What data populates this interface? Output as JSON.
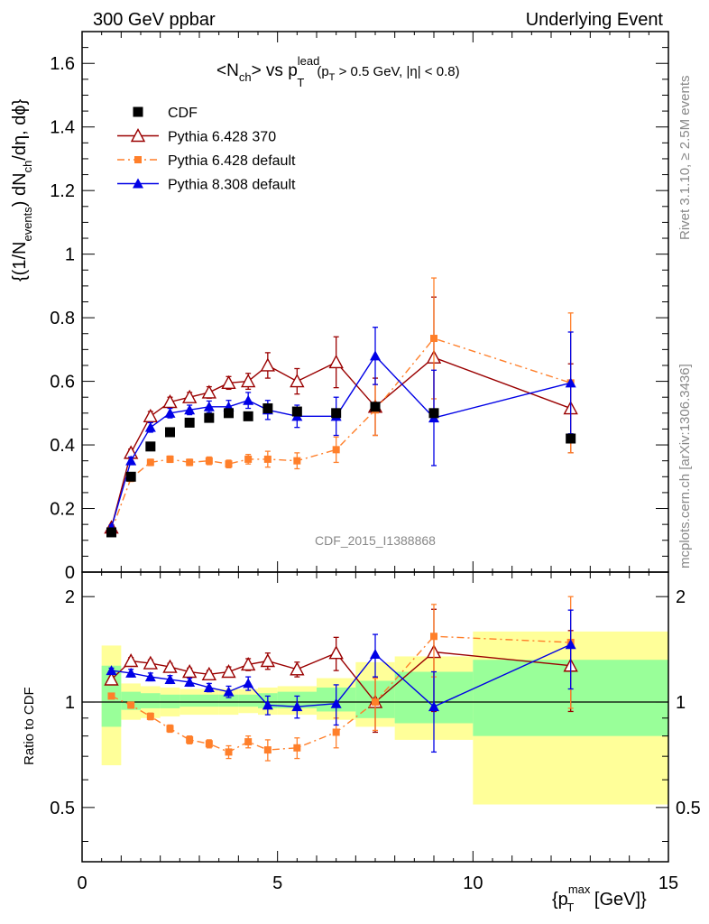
{
  "header": {
    "left": "300 GeV ppbar",
    "right": "Underlying Event",
    "side_rivet": "Rivet 3.1.10, ≥ 2.5M events",
    "side_mcplots": "mcplots.cern.ch [arXiv:1306.3436]",
    "analysis_tag": "CDF_2015_I1388868"
  },
  "chart_data": [
    {
      "type": "scatter",
      "panel": "main",
      "title_parts": {
        "a": "<N",
        "a_sub": "ch",
        "b": "> vs p",
        "b_sup": "lead",
        "b_sub": "T",
        "c": "(p",
        "c_sub": "T",
        "d": " > 0.5 GeV, |",
        "d_eta": "η",
        "d2": "| < 0.8)"
      },
      "ylabel_parts": {
        "a": "{(1/N",
        "a_sub": "events",
        "b": ") dN",
        "b_sub": "ch",
        "c": "/dη, dϕ}"
      },
      "xlim": [
        0,
        15
      ],
      "ylim": [
        0,
        1.7
      ],
      "y_ticks": [
        0,
        0.2,
        0.4,
        0.6,
        0.8,
        1,
        1.2,
        1.4,
        1.6
      ],
      "y_tick_labels": [
        "0",
        "0.2",
        "0.4",
        "0.6",
        "0.8",
        "1",
        "1.2",
        "1.4",
        "1.6"
      ],
      "legend_position": "top-left",
      "series": [
        {
          "name": "CDF",
          "style": "data",
          "color": "#000000",
          "x": [
            0.75,
            1.25,
            1.75,
            2.25,
            2.75,
            3.25,
            3.75,
            4.25,
            4.75,
            5.5,
            6.5,
            7.5,
            9.0,
            12.5
          ],
          "y": [
            0.125,
            0.3,
            0.395,
            0.44,
            0.47,
            0.485,
            0.5,
            0.49,
            0.515,
            0.505,
            0.5,
            0.52,
            0.5,
            0.42
          ],
          "err": [
            0,
            0,
            0,
            0,
            0,
            0,
            0,
            0,
            0,
            0,
            0,
            0,
            0,
            0
          ]
        },
        {
          "name": "Pythia 6.428 370",
          "style": "open-triangle",
          "color": "#9a0000",
          "x": [
            0.75,
            1.25,
            1.75,
            2.25,
            2.75,
            3.25,
            3.75,
            4.25,
            4.75,
            5.5,
            6.5,
            7.5,
            9.0,
            12.5
          ],
          "y": [
            0.14,
            0.375,
            0.49,
            0.535,
            0.55,
            0.565,
            0.595,
            0.6,
            0.65,
            0.6,
            0.66,
            0.52,
            0.675,
            0.515
          ],
          "err": [
            0.008,
            0.012,
            0.015,
            0.015,
            0.015,
            0.018,
            0.02,
            0.025,
            0.04,
            0.04,
            0.08,
            0.09,
            0.19,
            0.14
          ]
        },
        {
          "name": "Pythia 6.428 default",
          "style": "square-dashdot",
          "color": "#ff7f2a",
          "x": [
            0.75,
            1.25,
            1.75,
            2.25,
            2.75,
            3.25,
            3.75,
            4.25,
            4.75,
            5.5,
            6.5,
            7.5,
            9.0,
            12.5
          ],
          "y": [
            0.13,
            0.295,
            0.345,
            0.355,
            0.345,
            0.35,
            0.34,
            0.355,
            0.355,
            0.35,
            0.385,
            0.51,
            0.735,
            0.595
          ],
          "err": [
            0.006,
            0.01,
            0.01,
            0.01,
            0.01,
            0.012,
            0.012,
            0.015,
            0.025,
            0.025,
            0.04,
            0.08,
            0.19,
            0.22
          ]
        },
        {
          "name": "Pythia 8.308 default",
          "style": "triangle",
          "color": "#0000e6",
          "x": [
            0.75,
            1.25,
            1.75,
            2.25,
            2.75,
            3.25,
            3.75,
            4.25,
            4.75,
            5.5,
            6.5,
            7.5,
            9.0,
            12.5
          ],
          "y": [
            0.14,
            0.35,
            0.455,
            0.5,
            0.51,
            0.52,
            0.52,
            0.54,
            0.51,
            0.49,
            0.49,
            0.68,
            0.485,
            0.595
          ],
          "err": [
            0.008,
            0.012,
            0.015,
            0.015,
            0.015,
            0.018,
            0.02,
            0.025,
            0.03,
            0.035,
            0.06,
            0.09,
            0.15,
            0.16
          ]
        }
      ]
    },
    {
      "type": "scatter",
      "panel": "ratio",
      "ylabel": "Ratio to CDF",
      "xlabel_parts": {
        "a": "{p",
        "a_sup": "max",
        "a_sub": "T",
        "b": " [GeV]}"
      },
      "xlim": [
        0,
        15
      ],
      "ylim": [
        0.35,
        2.35
      ],
      "log_y": true,
      "x_ticks": [
        0,
        5,
        10,
        15
      ],
      "x_tick_labels": [
        "0",
        "5",
        "10",
        "15"
      ],
      "y_ticks": [
        0.5,
        1,
        2
      ],
      "y_tick_labels": [
        "0.5",
        "1",
        "2"
      ],
      "bands": {
        "bins": [
          [
            0.5,
            1.0
          ],
          [
            1.0,
            1.5
          ],
          [
            1.5,
            2.0
          ],
          [
            2.0,
            2.5
          ],
          [
            2.5,
            3.0
          ],
          [
            3.0,
            3.5
          ],
          [
            3.5,
            4.0
          ],
          [
            4.0,
            4.5
          ],
          [
            4.5,
            5.0
          ],
          [
            5.0,
            6.0
          ],
          [
            6.0,
            7.0
          ],
          [
            7.0,
            8.0
          ],
          [
            8.0,
            10.0
          ],
          [
            10.0,
            15.0
          ]
        ],
        "total_lo": [
          0.66,
          0.89,
          0.9,
          0.91,
          0.92,
          0.92,
          0.92,
          0.93,
          0.92,
          0.92,
          0.89,
          0.85,
          0.78,
          0.51
        ],
        "total_hi": [
          1.45,
          1.13,
          1.11,
          1.1,
          1.09,
          1.09,
          1.09,
          1.09,
          1.1,
          1.11,
          1.17,
          1.3,
          1.35,
          1.59
        ],
        "stat_lo": [
          0.85,
          0.95,
          0.96,
          0.96,
          0.97,
          0.97,
          0.97,
          0.97,
          0.96,
          0.96,
          0.94,
          0.9,
          0.87,
          0.8
        ],
        "stat_hi": [
          1.27,
          1.07,
          1.06,
          1.05,
          1.05,
          1.05,
          1.05,
          1.05,
          1.06,
          1.07,
          1.1,
          1.15,
          1.22,
          1.32
        ]
      },
      "series": [
        {
          "name": "Pythia 6.428 370",
          "style": "open-triangle",
          "color": "#9a0000",
          "x": [
            0.75,
            1.25,
            1.75,
            2.25,
            2.75,
            3.25,
            3.75,
            4.25,
            4.75,
            5.5,
            6.5,
            7.5,
            9.0,
            12.5
          ],
          "y": [
            1.16,
            1.31,
            1.29,
            1.26,
            1.22,
            1.2,
            1.22,
            1.28,
            1.31,
            1.24,
            1.38,
            1.0,
            1.39,
            1.27
          ],
          "err": [
            0.02,
            0.03,
            0.03,
            0.03,
            0.03,
            0.03,
            0.04,
            0.05,
            0.07,
            0.06,
            0.15,
            0.18,
            0.45,
            0.33
          ]
        },
        {
          "name": "Pythia 6.428 default",
          "style": "square-dashdot",
          "color": "#ff7f2a",
          "x": [
            0.75,
            1.25,
            1.75,
            2.25,
            2.75,
            3.25,
            3.75,
            4.25,
            4.75,
            5.5,
            6.5,
            7.5,
            9.0,
            12.5
          ],
          "y": [
            1.04,
            0.98,
            0.91,
            0.84,
            0.78,
            0.76,
            0.72,
            0.77,
            0.73,
            0.74,
            0.82,
            1.0,
            1.54,
            1.48
          ],
          "err": [
            0.01,
            0.02,
            0.02,
            0.02,
            0.02,
            0.02,
            0.03,
            0.03,
            0.05,
            0.05,
            0.08,
            0.17,
            0.36,
            0.52
          ]
        },
        {
          "name": "Pythia 8.308 default",
          "style": "triangle",
          "color": "#0000e6",
          "x": [
            0.75,
            1.25,
            1.75,
            2.25,
            2.75,
            3.25,
            3.75,
            4.25,
            4.75,
            5.5,
            6.5,
            7.5,
            9.0,
            12.5
          ],
          "y": [
            1.23,
            1.21,
            1.18,
            1.16,
            1.14,
            1.1,
            1.07,
            1.13,
            0.98,
            0.97,
            0.99,
            1.37,
            0.97,
            1.46
          ],
          "err": [
            0.02,
            0.03,
            0.03,
            0.03,
            0.03,
            0.03,
            0.04,
            0.05,
            0.06,
            0.07,
            0.13,
            0.19,
            0.25,
            0.37
          ]
        }
      ]
    }
  ]
}
